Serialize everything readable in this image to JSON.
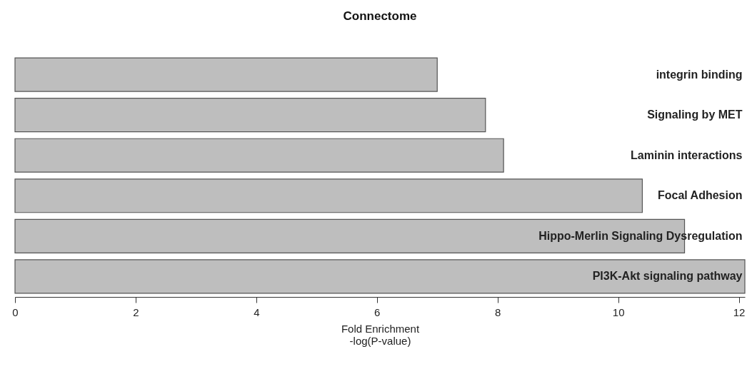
{
  "chart_data": {
    "type": "bar",
    "orientation": "horizontal",
    "title": "Connectome",
    "xlabel": "Fold Enrichment\n-log(P-value)",
    "categories": [
      "integrin binding",
      "Signaling by MET",
      "Laminin interactions",
      "Focal Adhesion",
      "Hippo-Merlin Signaling Dysregulation",
      "PI3K-Akt signaling pathway"
    ],
    "values": [
      7.0,
      7.8,
      8.1,
      10.4,
      11.1,
      12.1
    ],
    "color": "#bebebe",
    "xlim": [
      0,
      12.1
    ],
    "xticks": [
      0,
      2,
      4,
      6,
      8,
      10,
      12
    ],
    "grid": false
  }
}
